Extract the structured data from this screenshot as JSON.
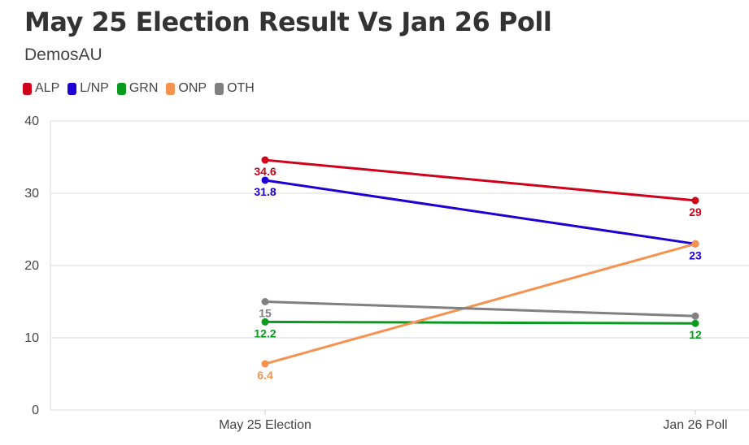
{
  "chart_data": {
    "type": "line",
    "title": "May 25 Election Result Vs Jan 26 Poll",
    "subtitle": "DemosAU",
    "categories": [
      "May 25 Election",
      "Jan 26 Poll"
    ],
    "ylim": [
      0,
      40
    ],
    "yticks": [
      "0",
      "10",
      "20",
      "30",
      "40"
    ],
    "grid": true,
    "legend_position": "top-left",
    "series": [
      {
        "name": "ALP",
        "color": "#d0021b",
        "values": [
          34.6,
          29
        ],
        "labels": [
          "34.6",
          "29"
        ]
      },
      {
        "name": "L/NP",
        "color": "#1f00d4",
        "values": [
          31.8,
          23
        ],
        "labels": [
          "31.8",
          "23"
        ]
      },
      {
        "name": "GRN",
        "color": "#0a9a1f",
        "values": [
          12.2,
          12
        ],
        "labels": [
          "12.2",
          "12"
        ]
      },
      {
        "name": "ONP",
        "color": "#f5924f",
        "values": [
          6.4,
          23
        ],
        "labels": [
          "6.4",
          null
        ]
      },
      {
        "name": "OTH",
        "color": "#808080",
        "values": [
          15,
          13
        ],
        "labels": [
          "15",
          null
        ]
      }
    ]
  }
}
